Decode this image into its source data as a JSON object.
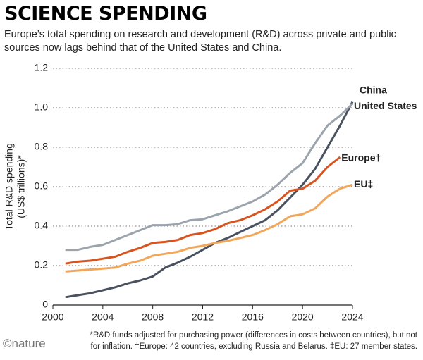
{
  "chart_data": {
    "type": "line",
    "title": "SCIENCE SPENDING",
    "subtitle": "Europe’s total spending on research and development (R&D) across private and public sources now lags behind that of the United States and China.",
    "y_label": [
      "Total R&D spending",
      "(US$ trillions)*"
    ],
    "footnote": "*R&D funds adjusted for purchasing power (differences in costs between countries), but not for inflation. †Europe: 42 countries, excluding Russia and Belarus. ‡EU: 27 member states.",
    "source": "©nature",
    "x": [
      2001,
      2002,
      2003,
      2004,
      2005,
      2006,
      2007,
      2008,
      2009,
      2010,
      2011,
      2012,
      2013,
      2014,
      2015,
      2016,
      2017,
      2018,
      2019,
      2020,
      2021,
      2022,
      2023,
      2024
    ],
    "series": [
      {
        "name": "China",
        "color": "#4a5260",
        "values": [
          0.04,
          0.05,
          0.06,
          0.075,
          0.09,
          0.11,
          0.125,
          0.145,
          0.19,
          0.215,
          0.245,
          0.28,
          0.315,
          0.34,
          0.37,
          0.4,
          0.43,
          0.48,
          0.545,
          0.61,
          0.69,
          0.8,
          0.91,
          1.03
        ]
      },
      {
        "name": "United States",
        "color": "#9ba3ad",
        "values": [
          0.28,
          0.28,
          0.295,
          0.305,
          0.33,
          0.355,
          0.38,
          0.405,
          0.405,
          0.41,
          0.43,
          0.435,
          0.455,
          0.475,
          0.5,
          0.525,
          0.56,
          0.61,
          0.67,
          0.72,
          0.82,
          0.91,
          0.96,
          1.02
        ]
      },
      {
        "name": "Europe†",
        "color": "#d9531e",
        "values": [
          0.21,
          0.22,
          0.225,
          0.235,
          0.245,
          0.27,
          0.29,
          0.315,
          0.32,
          0.33,
          0.355,
          0.365,
          0.385,
          0.415,
          0.43,
          0.455,
          0.485,
          0.525,
          0.58,
          0.59,
          0.63,
          0.7,
          0.75,
          null
        ]
      },
      {
        "name": "EU‡",
        "color": "#f2a65a",
        "values": [
          0.17,
          0.175,
          0.18,
          0.185,
          0.19,
          0.21,
          0.225,
          0.25,
          0.26,
          0.27,
          0.29,
          0.3,
          0.315,
          0.325,
          0.34,
          0.355,
          0.38,
          0.41,
          0.45,
          0.46,
          0.49,
          0.55,
          0.59,
          0.61
        ]
      }
    ],
    "xlim": [
      2000,
      2024
    ],
    "xticks": [
      2000,
      2004,
      2008,
      2012,
      2016,
      2020,
      2024
    ],
    "ylim": [
      0,
      1.2
    ],
    "yticks": [
      0,
      0.2,
      0.4,
      0.6,
      0.8,
      {
        "value": 1,
        "label": "1.0"
      },
      1.2
    ],
    "grid": true
  }
}
